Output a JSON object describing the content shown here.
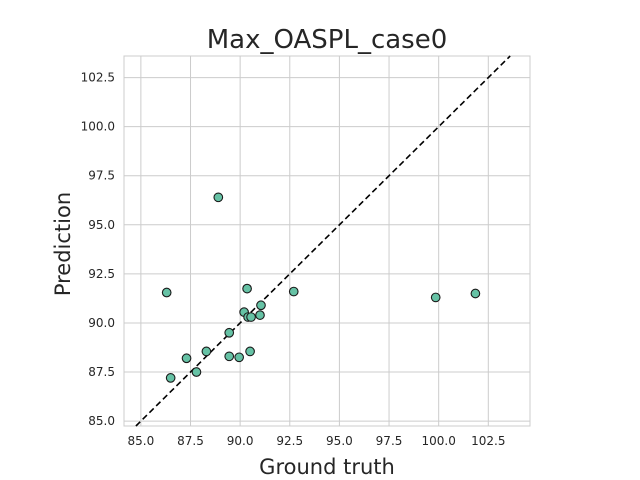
{
  "chart_data": {
    "type": "scatter",
    "title": "Max_OASPL_case0",
    "xlabel": "Ground truth",
    "ylabel": "Prediction",
    "xlim": [
      84.15,
      104.6
    ],
    "ylim": [
      84.75,
      103.6
    ],
    "xticks": [
      85.0,
      87.5,
      90.0,
      92.5,
      95.0,
      97.5,
      100.0,
      102.5
    ],
    "yticks": [
      85.0,
      87.5,
      90.0,
      92.5,
      95.0,
      97.5,
      100.0,
      102.5
    ],
    "grid": true,
    "reference_line": "y = x (dashed)",
    "point_color": "#66c2a5",
    "points": [
      {
        "x": 86.3,
        "y": 91.55
      },
      {
        "x": 86.5,
        "y": 87.2
      },
      {
        "x": 87.3,
        "y": 88.2
      },
      {
        "x": 87.8,
        "y": 87.5
      },
      {
        "x": 88.3,
        "y": 88.55
      },
      {
        "x": 88.9,
        "y": 96.4
      },
      {
        "x": 89.45,
        "y": 89.5
      },
      {
        "x": 89.45,
        "y": 88.3
      },
      {
        "x": 89.95,
        "y": 88.25
      },
      {
        "x": 90.2,
        "y": 90.55
      },
      {
        "x": 90.35,
        "y": 91.75
      },
      {
        "x": 90.4,
        "y": 90.3
      },
      {
        "x": 90.5,
        "y": 88.55
      },
      {
        "x": 90.55,
        "y": 90.3
      },
      {
        "x": 91.0,
        "y": 90.4
      },
      {
        "x": 91.05,
        "y": 90.9
      },
      {
        "x": 92.7,
        "y": 91.6
      },
      {
        "x": 99.85,
        "y": 91.3
      },
      {
        "x": 101.85,
        "y": 91.5
      }
    ]
  }
}
